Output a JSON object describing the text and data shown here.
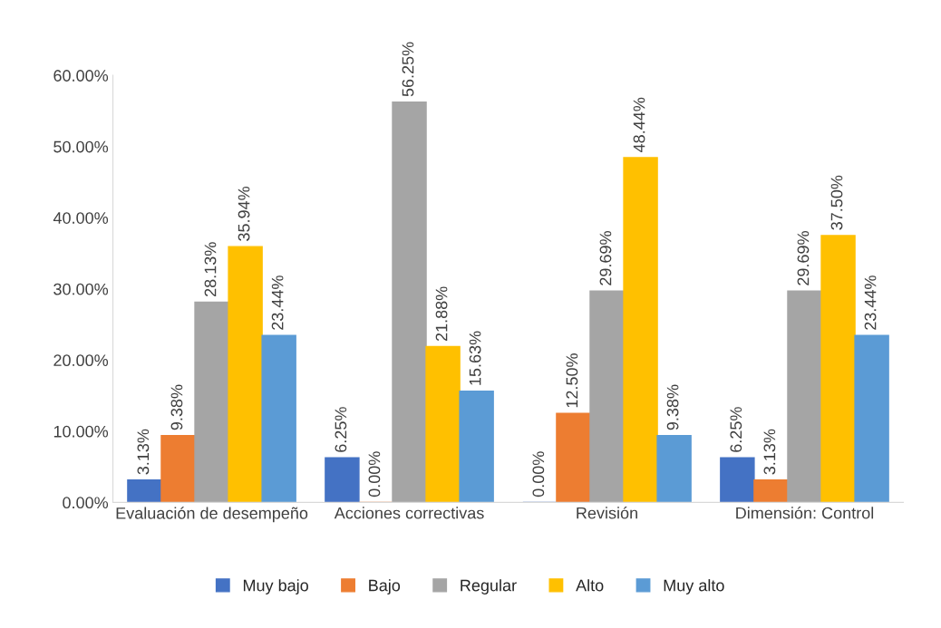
{
  "chart_data": {
    "type": "bar",
    "categories": [
      "Evaluación de desempeño",
      "Acciones correctivas",
      "Revisión",
      "Dimensión: Control"
    ],
    "series": [
      {
        "name": "Muy bajo",
        "color": "#4472c4",
        "values": [
          3.13,
          6.25,
          0.0,
          6.25
        ],
        "value_labels": [
          "3.13%",
          "6.25%",
          "0.00%",
          "6.25%"
        ]
      },
      {
        "name": "Bajo",
        "color": "#ed7d31",
        "values": [
          9.38,
          0.0,
          12.5,
          3.13
        ],
        "value_labels": [
          "9.38%",
          "0.00%",
          "12.50%",
          "3.13%"
        ]
      },
      {
        "name": "Regular",
        "color": "#a5a5a5",
        "values": [
          28.13,
          56.25,
          29.69,
          29.69
        ],
        "value_labels": [
          "28.13%",
          "56.25%",
          "29.69%",
          "29.69%"
        ]
      },
      {
        "name": "Alto",
        "color": "#ffc000",
        "values": [
          35.94,
          21.88,
          48.44,
          37.5
        ],
        "value_labels": [
          "35.94%",
          "21.88%",
          "48.44%",
          "37.50%"
        ]
      },
      {
        "name": "Muy alto",
        "color": "#5b9bd5",
        "values": [
          23.44,
          15.63,
          9.38,
          23.44
        ],
        "value_labels": [
          "23.44%",
          "15.63%",
          "9.38%",
          "23.44%"
        ]
      }
    ],
    "ylim": [
      0,
      60
    ],
    "yticks": [
      {
        "value": 0,
        "label": "0.00%"
      },
      {
        "value": 10,
        "label": "10.00%"
      },
      {
        "value": 20,
        "label": "20.00%"
      },
      {
        "value": 30,
        "label": "30.00%"
      },
      {
        "value": 40,
        "label": "40.00%"
      },
      {
        "value": 50,
        "label": "50.00%"
      },
      {
        "value": 60,
        "label": "60.00%"
      }
    ],
    "grid": false,
    "legend": "bottom"
  }
}
